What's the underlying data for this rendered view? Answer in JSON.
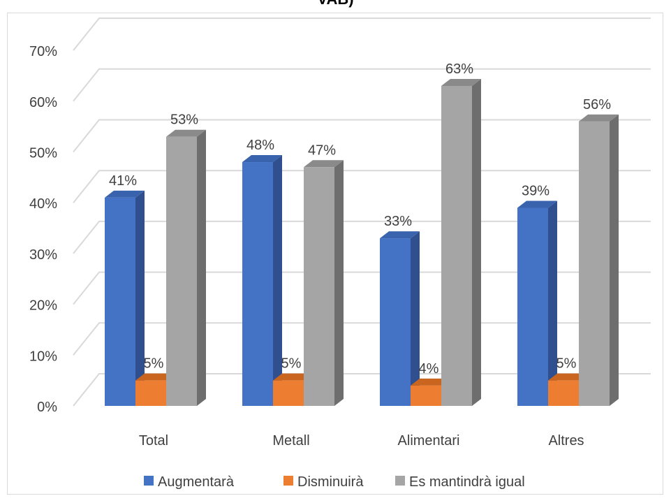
{
  "chart_data": {
    "type": "bar",
    "title": "VAB)",
    "categories": [
      "Total",
      "Metall",
      "Alimentari",
      "Altres"
    ],
    "series": [
      {
        "name": "Augmentarà",
        "values": [
          41,
          48,
          33,
          39
        ],
        "labels": [
          "41%",
          "48%",
          "33%",
          "39%"
        ],
        "color": "#4472c4",
        "side_color": "#2f4f8f",
        "top_color": "#3a63ad"
      },
      {
        "name": "Disminuirà",
        "values": [
          5,
          5,
          4,
          5
        ],
        "labels": [
          "5%",
          "5%",
          "4%",
          "5%"
        ],
        "color": "#ed7d31",
        "side_color": "#b45f22",
        "top_color": "#c9651f"
      },
      {
        "name": "Es mantindrà igual",
        "values": [
          53,
          47,
          63,
          56
        ],
        "labels": [
          "53%",
          "47%",
          "63%",
          "56%"
        ],
        "color": "#a5a5a5",
        "side_color": "#6e6e6e",
        "top_color": "#8a8a8a"
      }
    ],
    "yticks": [
      "0%",
      "10%",
      "20%",
      "30%",
      "40%",
      "50%",
      "60%",
      "70%"
    ],
    "ylim": [
      0,
      70
    ],
    "grid": true,
    "legend": "bottom"
  }
}
